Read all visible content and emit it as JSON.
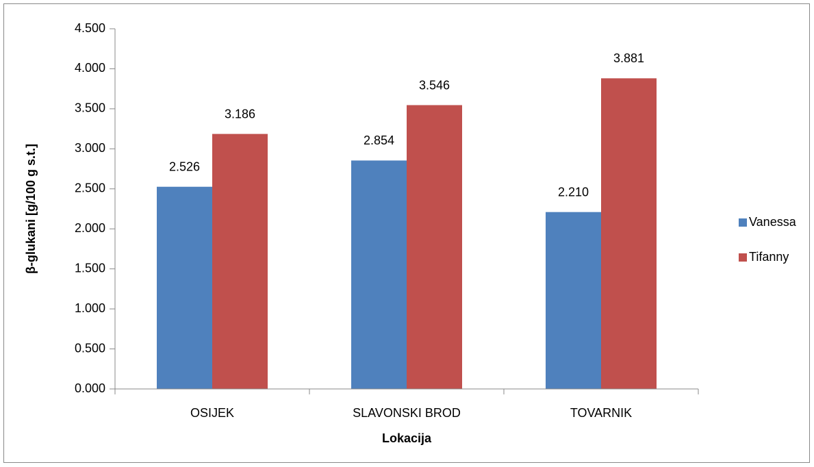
{
  "chart_data": {
    "type": "bar",
    "categories": [
      "OSIJEK",
      "SLAVONSKI BROD",
      "TOVARNIK"
    ],
    "series": [
      {
        "name": "Vanessa",
        "color": "#4f81bd",
        "values": [
          2.526,
          2.854,
          2.21
        ],
        "value_labels": [
          "2.526",
          "2.854",
          "2.210"
        ]
      },
      {
        "name": "Tifanny",
        "color": "#c0504d",
        "values": [
          3.186,
          3.546,
          3.881
        ],
        "value_labels": [
          "3.186",
          "3.546",
          "3.881"
        ]
      }
    ],
    "x_label": "Lokacija",
    "y_label": "β-glukani [g/100 g s.t.]",
    "ylim": [
      0,
      4.5
    ],
    "yticks": [
      {
        "value": 0,
        "label": "0.000"
      },
      {
        "value": 0.5,
        "label": "0.500"
      },
      {
        "value": 1,
        "label": "1.000"
      },
      {
        "value": 1.5,
        "label": "1.500"
      },
      {
        "value": 2,
        "label": "2.000"
      },
      {
        "value": 2.5,
        "label": "2.500"
      },
      {
        "value": 3,
        "label": "3.000"
      },
      {
        "value": 3.5,
        "label": "3.500"
      },
      {
        "value": 4,
        "label": "4.000"
      },
      {
        "value": 4.5,
        "label": "4.500"
      }
    ],
    "legend": "right"
  }
}
